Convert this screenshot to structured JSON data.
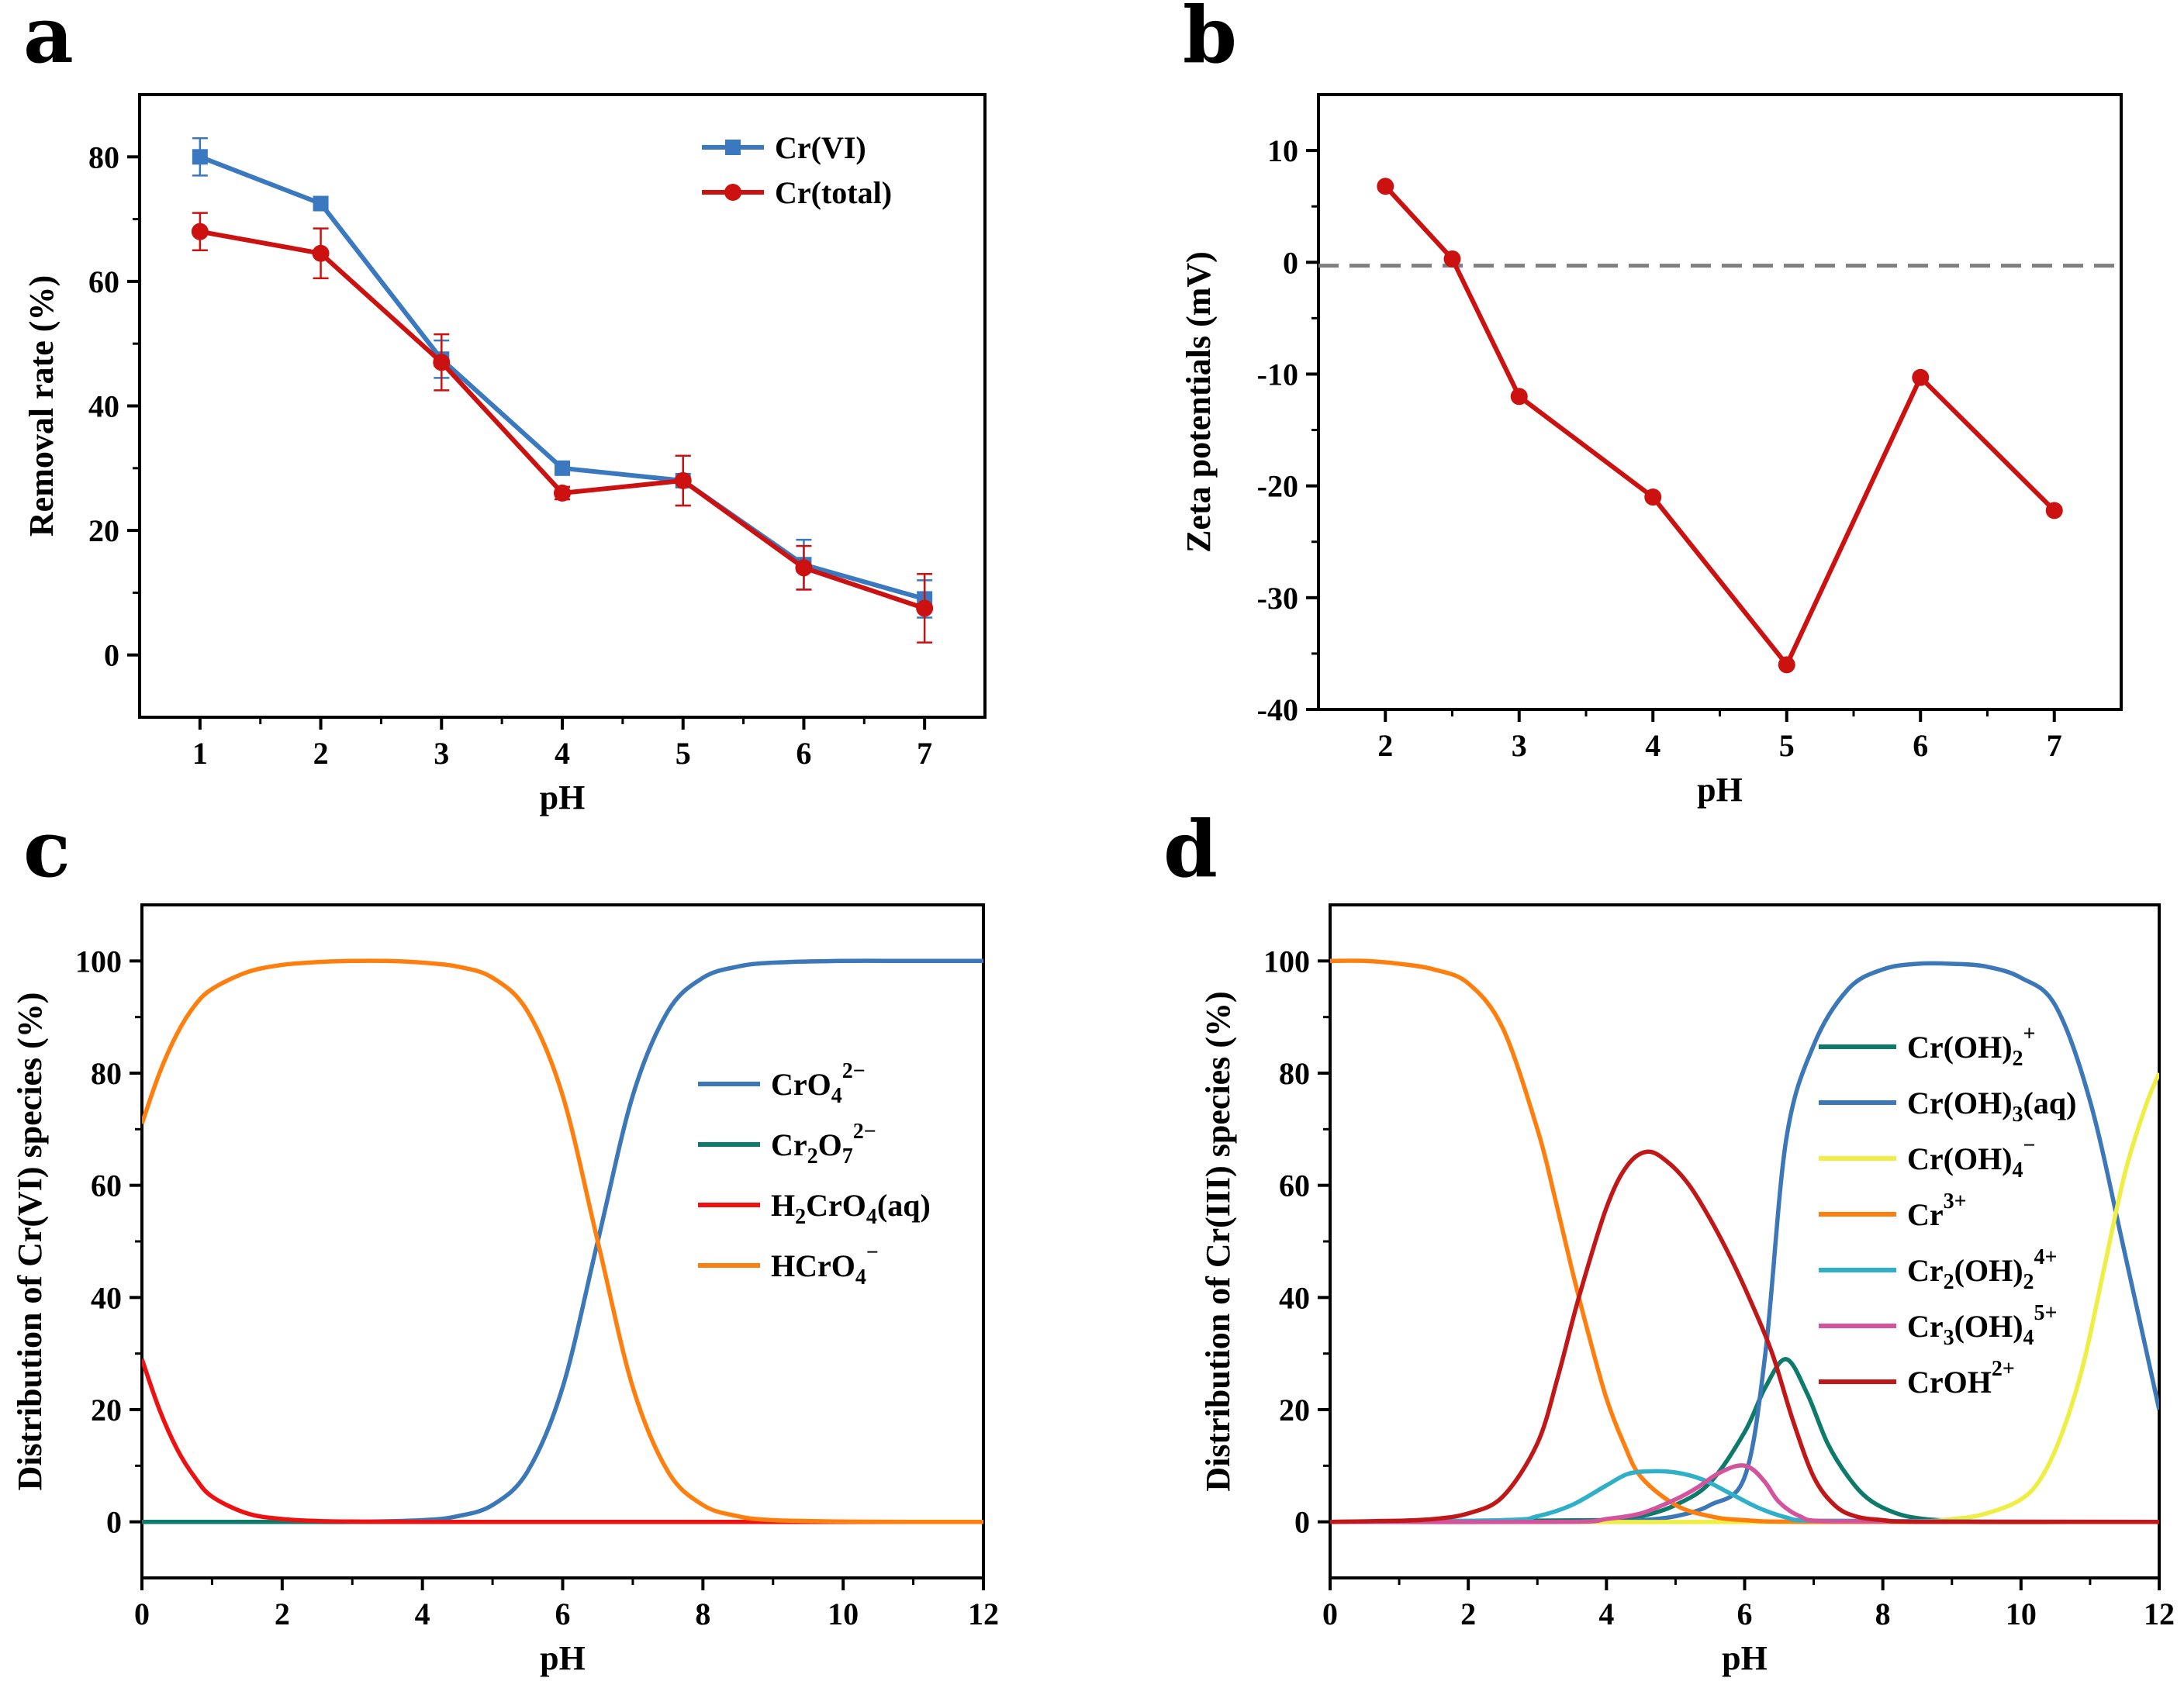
{
  "panel_letters": {
    "a": "a",
    "b": "b",
    "c": "c",
    "d": "d"
  },
  "chart_data": [
    {
      "id": "a",
      "type": "line",
      "xlabel": "pH",
      "ylabel": "Removal rate (%)",
      "xlim": [
        0.5,
        7.5
      ],
      "ylim": [
        -10,
        90
      ],
      "xticks": [
        1,
        2,
        3,
        4,
        5,
        6,
        7
      ],
      "yticks": [
        0,
        20,
        40,
        60,
        80
      ],
      "legend_position": "top-right",
      "series": [
        {
          "name": "Cr(VI)",
          "color": "#3a79c0",
          "marker": "square",
          "x": [
            1,
            2,
            3,
            4,
            5,
            6,
            7
          ],
          "values": [
            80,
            72.5,
            47.5,
            30,
            28,
            14.5,
            9
          ],
          "error": [
            3,
            0,
            3,
            1,
            4,
            4,
            3
          ]
        },
        {
          "name": "Cr(total)",
          "color": "#cc1111",
          "marker": "circle",
          "x": [
            1,
            2,
            3,
            4,
            5,
            6,
            7
          ],
          "values": [
            68,
            64.5,
            47,
            26,
            28,
            14,
            7.5
          ],
          "error": [
            3,
            4,
            4.5,
            1,
            4,
            3.5,
            5.5
          ]
        }
      ]
    },
    {
      "id": "b",
      "type": "line",
      "xlabel": "pH",
      "ylabel": "Zeta potentials (mV)",
      "xlim": [
        1.5,
        7.5
      ],
      "ylim": [
        -40,
        15
      ],
      "xticks": [
        2,
        3,
        4,
        5,
        6,
        7
      ],
      "yticks": [
        10,
        0,
        -10,
        -20,
        -30,
        -40
      ],
      "reference_line": {
        "y": -0.3,
        "style": "dashed",
        "color": "#7f7f7f"
      },
      "series": [
        {
          "name": "Zeta potential",
          "color": "#cc1111",
          "marker": "circle",
          "x": [
            2,
            2.5,
            3,
            4,
            5,
            6,
            7
          ],
          "values": [
            6.8,
            0.3,
            -12,
            -21,
            -36,
            -10.3,
            -22.2
          ]
        }
      ]
    },
    {
      "id": "c",
      "type": "line",
      "xlabel": "pH",
      "ylabel": "Distribution of Cr(VI) species (%)",
      "xlim": [
        0,
        12
      ],
      "ylim": [
        -10,
        110
      ],
      "xticks": [
        0,
        2,
        4,
        6,
        8,
        10,
        12
      ],
      "yticks": [
        0,
        20,
        40,
        60,
        80,
        100
      ],
      "legend_position": "right",
      "series": [
        {
          "name": "CrO42-",
          "legend": {
            "base": "CrO",
            "sub": "4",
            "sup": "2−"
          },
          "color": "#3c77b8",
          "x": [
            0,
            1,
            2,
            3,
            4,
            4.5,
            5,
            5.5,
            6,
            6.5,
            7,
            7.5,
            8,
            8.5,
            9,
            10,
            11,
            12
          ],
          "values": [
            0,
            0,
            0,
            0,
            0.3,
            1,
            3,
            9,
            24,
            50,
            76,
            91,
            97,
            99,
            99.7,
            100,
            100,
            100
          ]
        },
        {
          "name": "Cr2O72-",
          "legend": {
            "base": "Cr",
            "sub": "2",
            "base2": "O",
            "sub2": "7",
            "sup": "2−"
          },
          "color": "#0e7a6a",
          "x": [
            0,
            12
          ],
          "values": [
            0,
            0
          ]
        },
        {
          "name": "H2CrO4(aq)",
          "legend": {
            "base": "H",
            "sub": "2",
            "base2": "CrO",
            "sub2": "4",
            "tail": "(aq)"
          },
          "color": "#ee1111",
          "x": [
            0,
            0.25,
            0.5,
            0.75,
            1,
            1.5,
            2,
            2.5,
            3,
            4,
            12
          ],
          "values": [
            29,
            20,
            13,
            8,
            4.5,
            1.5,
            0.5,
            0.15,
            0.05,
            0,
            0
          ]
        },
        {
          "name": "HCrO4-",
          "legend": {
            "base": "HCrO",
            "sub": "4",
            "sup": "−"
          },
          "color": "#ff7f0e",
          "x": [
            0,
            0.25,
            0.5,
            0.75,
            1,
            1.5,
            2,
            2.5,
            3,
            3.5,
            4,
            4.5,
            5,
            5.5,
            6,
            6.5,
            7,
            7.5,
            8,
            8.5,
            9,
            10,
            11,
            12
          ],
          "values": [
            71,
            80,
            87,
            92,
            95,
            98,
            99.3,
            99.8,
            100,
            100,
            99.7,
            99,
            97,
            91,
            76,
            50,
            24,
            9,
            3,
            1,
            0.3,
            0.05,
            0,
            0
          ]
        }
      ]
    },
    {
      "id": "d",
      "type": "line",
      "xlabel": "pH",
      "ylabel": "Distribution of Cr(III) species (%)",
      "xlim": [
        0,
        12
      ],
      "ylim": [
        -10,
        110
      ],
      "xticks": [
        0,
        2,
        4,
        6,
        8,
        10,
        12
      ],
      "yticks": [
        0,
        20,
        40,
        60,
        80,
        100
      ],
      "legend_position": "right",
      "series": [
        {
          "name": "Cr(OH)2+",
          "legend": {
            "base": "Cr(OH)",
            "sub": "2",
            "sup": "+"
          },
          "color": "#0e7a6a",
          "x": [
            0,
            4,
            4.5,
            5,
            5.5,
            6,
            6.3,
            6.6,
            6.9,
            7.2,
            7.5,
            7.8,
            8.2,
            8.6,
            9,
            9.5,
            12
          ],
          "values": [
            0,
            0.3,
            1,
            3,
            7,
            16,
            24,
            29,
            23,
            14,
            8,
            4,
            1.5,
            0.5,
            0.2,
            0,
            0
          ]
        },
        {
          "name": "Cr(OH)3(aq)",
          "legend": {
            "base": "Cr(OH)",
            "sub": "3",
            "tail": "(aq)"
          },
          "color": "#3c77b8",
          "x": [
            0,
            4,
            4.5,
            5,
            5.5,
            6,
            6.3,
            6.6,
            7,
            7.5,
            8,
            8.5,
            9,
            9.5,
            10,
            10.5,
            11,
            11.5,
            12
          ],
          "values": [
            0,
            0,
            0.3,
            1,
            3,
            8,
            30,
            68,
            85,
            95,
            98.5,
            99.5,
            99.5,
            99,
            97,
            92,
            75,
            48,
            20
          ]
        },
        {
          "name": "Cr(OH)4-",
          "legend": {
            "base": "Cr(OH)",
            "sub": "4",
            "sup": "−"
          },
          "color": "#eeee44",
          "x": [
            0,
            8,
            9,
            9.5,
            10,
            10.3,
            10.6,
            10.9,
            11.2,
            11.5,
            11.8,
            12
          ],
          "values": [
            0,
            0,
            0.5,
            1.5,
            4,
            8,
            16,
            28,
            45,
            62,
            74,
            80
          ]
        },
        {
          "name": "Cr3+",
          "legend": {
            "base": "Cr",
            "sup": "3+"
          },
          "color": "#ff7f0e",
          "x": [
            0,
            0.5,
            1,
            1.5,
            2,
            2.5,
            3,
            3.25,
            3.5,
            3.75,
            4,
            4.25,
            4.5,
            5,
            5.5,
            6,
            7,
            12
          ],
          "values": [
            100,
            100,
            99.5,
            98.5,
            96,
            88,
            70,
            58,
            45,
            33,
            22,
            14,
            8,
            3,
            1,
            0.3,
            0,
            0
          ]
        },
        {
          "name": "Cr2(OH)24+",
          "legend": {
            "base": "Cr",
            "sub": "2",
            "base2": "(OH)",
            "sub2": "2",
            "sup": "4+"
          },
          "color": "#2fb0c8",
          "x": [
            0,
            2.5,
            3,
            3.5,
            4,
            4.3,
            4.6,
            5,
            5.4,
            5.8,
            6.2,
            6.6,
            7,
            12
          ],
          "values": [
            0,
            0.3,
            1,
            3,
            6.5,
            8.5,
            9,
            8.8,
            7.5,
            5,
            2.5,
            0.8,
            0.2,
            0
          ]
        },
        {
          "name": "Cr3(OH)45+",
          "legend": {
            "base": "Cr",
            "sub": "3",
            "base2": "(OH)",
            "sub2": "4",
            "sup": "5+"
          },
          "color": "#d4539d",
          "x": [
            0,
            3.5,
            4,
            4.5,
            5,
            5.3,
            5.6,
            5.9,
            6.1,
            6.3,
            6.5,
            6.8,
            7.2,
            12
          ],
          "values": [
            0,
            0,
            0.5,
            1.5,
            4,
            6,
            8.5,
            10,
            9.5,
            7,
            3.5,
            1,
            0.1,
            0
          ]
        },
        {
          "name": "CrOH2+",
          "legend": {
            "base": "CrOH",
            "sup": "2+"
          },
          "color": "#c01818",
          "x": [
            0,
            1,
            1.5,
            2,
            2.5,
            3,
            3.3,
            3.6,
            4,
            4.3,
            4.6,
            4.9,
            5.2,
            5.5,
            5.8,
            6.1,
            6.4,
            6.7,
            7,
            7.3,
            7.6,
            8,
            8.5,
            12
          ],
          "values": [
            0,
            0.2,
            0.5,
            1.5,
            4.5,
            14,
            26,
            40,
            56,
            63.5,
            66,
            64,
            60,
            54,
            47,
            39,
            30,
            18,
            8,
            3,
            1,
            0.3,
            0,
            0
          ]
        }
      ]
    }
  ]
}
